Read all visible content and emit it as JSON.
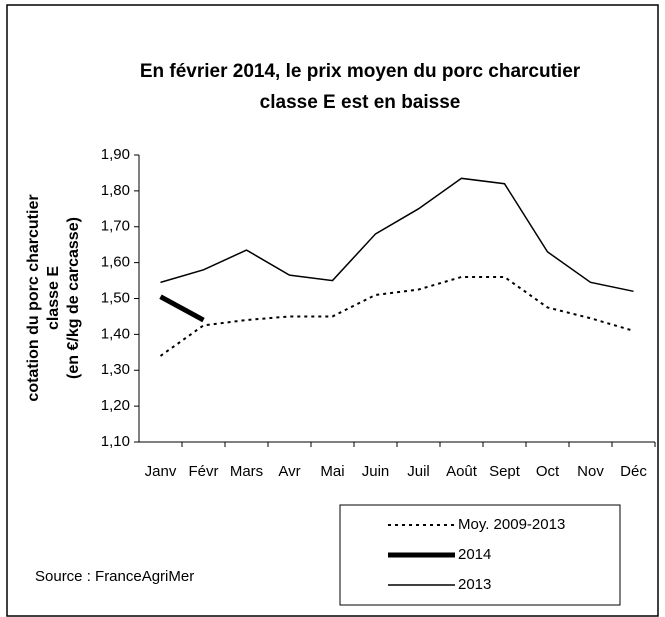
{
  "chart_data": {
    "type": "line",
    "title": [
      "En février 2014, le prix moyen du porc charcutier",
      "classe E est en baisse"
    ],
    "y_label": [
      "cotation du porc charcutier",
      "classe E",
      "(en €/kg de carcasse)"
    ],
    "source": "Source : FranceAgriMer",
    "categories": [
      "Janv",
      "Févr",
      "Mars",
      "Avr",
      "Mai",
      "Juin",
      "Juil",
      "Août",
      "Sept",
      "Oct",
      "Nov",
      "Déc"
    ],
    "series": [
      {
        "name": "Moy. 2009-2013",
        "color": "#000000",
        "style": "dotted",
        "width": 2,
        "values": [
          1.34,
          1.425,
          1.44,
          1.45,
          1.45,
          1.51,
          1.525,
          1.56,
          1.56,
          1.475,
          1.445,
          1.41
        ]
      },
      {
        "name": "2014",
        "color": "#000000",
        "style": "solid",
        "width": 5,
        "values": [
          1.505,
          1.44,
          null,
          null,
          null,
          null,
          null,
          null,
          null,
          null,
          null,
          null
        ]
      },
      {
        "name": "2013",
        "color": "#000000",
        "style": "solid",
        "width": 1.5,
        "values": [
          1.545,
          1.58,
          1.635,
          1.565,
          1.55,
          1.68,
          1.75,
          1.835,
          1.82,
          1.63,
          1.545,
          1.52
        ]
      }
    ],
    "ylim": [
      1.1,
      1.9
    ],
    "yticks": [
      {
        "value": 1.1,
        "label": "1,10"
      },
      {
        "value": 1.2,
        "label": "1,20"
      },
      {
        "value": 1.3,
        "label": "1,30"
      },
      {
        "value": 1.4,
        "label": "1,40"
      },
      {
        "value": 1.5,
        "label": "1,50"
      },
      {
        "value": 1.6,
        "label": "1,60"
      },
      {
        "value": 1.7,
        "label": "1,70"
      },
      {
        "value": 1.8,
        "label": "1,80"
      },
      {
        "value": 1.9,
        "label": "1,90"
      }
    ],
    "grid": false
  }
}
